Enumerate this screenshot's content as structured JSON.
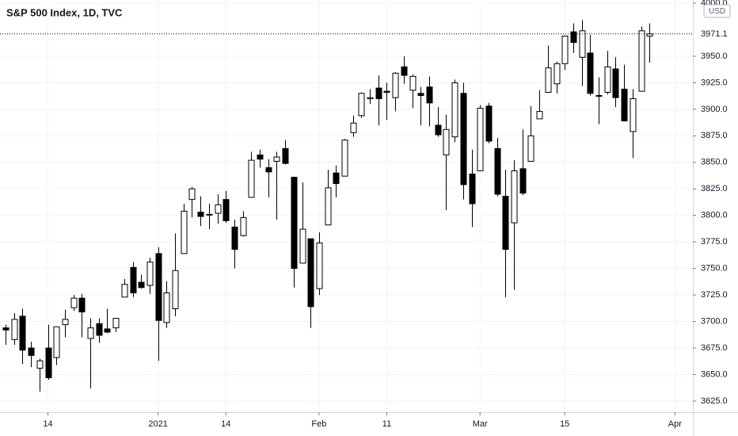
{
  "chart_data": {
    "type": "candlestick",
    "title": "S&P 500 Index, 1D, TVC",
    "currency": "USD",
    "dates": [
      "2020-12-07",
      "2020-12-08",
      "2020-12-09",
      "2020-12-10",
      "2020-12-11",
      "2020-12-14",
      "2020-12-15",
      "2020-12-16",
      "2020-12-17",
      "2020-12-18",
      "2020-12-21",
      "2020-12-22",
      "2020-12-23",
      "2020-12-24",
      "2020-12-28",
      "2020-12-29",
      "2020-12-30",
      "2020-12-31",
      "2021-01-04",
      "2021-01-05",
      "2021-01-06",
      "2021-01-07",
      "2021-01-08",
      "2021-01-11",
      "2021-01-12",
      "2021-01-13",
      "2021-01-14",
      "2021-01-15",
      "2021-01-19",
      "2021-01-20",
      "2021-01-21",
      "2021-01-22",
      "2021-01-25",
      "2021-01-26",
      "2021-01-27",
      "2021-01-28",
      "2021-01-29",
      "2021-02-01",
      "2021-02-02",
      "2021-02-03",
      "2021-02-04",
      "2021-02-05",
      "2021-02-08",
      "2021-02-09",
      "2021-02-10",
      "2021-02-11",
      "2021-02-12",
      "2021-02-16",
      "2021-02-17",
      "2021-02-18",
      "2021-02-19",
      "2021-02-22",
      "2021-02-23",
      "2021-02-24",
      "2021-02-25",
      "2021-02-26",
      "2021-03-01",
      "2021-03-02",
      "2021-03-03",
      "2021-03-04",
      "2021-03-05",
      "2021-03-08",
      "2021-03-09",
      "2021-03-10",
      "2021-03-11",
      "2021-03-12",
      "2021-03-15",
      "2021-03-16",
      "2021-03-17",
      "2021-03-18",
      "2021-03-19",
      "2021-03-22",
      "2021-03-23",
      "2021-03-24",
      "2021-03-25",
      "2021-03-26",
      "2021-03-29"
    ],
    "open": [
      3694,
      3683,
      3705,
      3675,
      3656,
      3675,
      3666,
      3697,
      3713,
      3722,
      3684,
      3698,
      3693,
      3694,
      3723,
      3751,
      3737,
      3734,
      3764,
      3699,
      3712,
      3764,
      3815,
      3803,
      3801,
      3802,
      3815,
      3789,
      3781,
      3817,
      3857,
      3845,
      3851,
      3863,
      3836,
      3755,
      3778,
      3731,
      3791,
      3840,
      3837,
      3878,
      3894,
      3910,
      3920,
      3917,
      3911,
      3940,
      3918,
      3915,
      3921,
      3885,
      3857,
      3874,
      3915,
      3839,
      3842,
      3903,
      3863,
      3818,
      3793,
      3844,
      3851,
      3891,
      3916,
      3924,
      3943,
      3973,
      3949,
      3953,
      3913,
      3916,
      3938,
      3919,
      3879,
      3917,
      3969
    ],
    "high": [
      3697,
      3708,
      3712,
      3681,
      3665,
      3697,
      3695,
      3711,
      3725,
      3726,
      3703,
      3703,
      3712,
      3703,
      3740,
      3756,
      3744,
      3760,
      3770,
      3738,
      3783,
      3811,
      3827,
      3818,
      3811,
      3820,
      3823,
      3796,
      3804,
      3860,
      3862,
      3853,
      3860,
      3871,
      3836,
      3831,
      3778,
      3784,
      3843,
      3847,
      3872,
      3894,
      3916,
      3919,
      3932,
      3925,
      3935,
      3950,
      3933,
      3921,
      3931,
      3902,
      3895,
      3928,
      3925,
      3862,
      3904,
      3906,
      3873,
      3843,
      3852,
      3881,
      3903,
      3918,
      3960,
      3945,
      3969,
      3981,
      3984,
      3970,
      3930,
      3955,
      3949,
      3942,
      3919,
      3978,
      3981
    ],
    "low": [
      3678,
      3678,
      3660,
      3657,
      3634,
      3645,
      3659,
      3685,
      3710,
      3685,
      3637,
      3680,
      3689,
      3690,
      3723,
      3723,
      3731,
      3726,
      3663,
      3694,
      3705,
      3764,
      3798,
      3790,
      3787,
      3792,
      3793,
      3750,
      3780,
      3817,
      3845,
      3817,
      3796,
      3848,
      3732,
      3755,
      3694,
      3725,
      3791,
      3817,
      3837,
      3874,
      3892,
      3905,
      3885,
      3890,
      3898,
      3924,
      3901,
      3885,
      3884,
      3874,
      3805,
      3869,
      3815,
      3789,
      3842,
      3868,
      3818,
      3723,
      3730,
      3819,
      3851,
      3891,
      3916,
      3915,
      3937,
      3953,
      3922,
      3913,
      3886,
      3914,
      3902,
      3889,
      3854,
      3917,
      3944
    ],
    "close": [
      3692,
      3702,
      3673,
      3668,
      3663,
      3647,
      3695,
      3702,
      3722,
      3709,
      3694,
      3687,
      3690,
      3703,
      3735,
      3727,
      3732,
      3756,
      3701,
      3727,
      3748,
      3804,
      3825,
      3799,
      3801,
      3810,
      3795,
      3768,
      3798,
      3852,
      3853,
      3841,
      3855,
      3849,
      3750,
      3787,
      3714,
      3774,
      3826,
      3830,
      3871,
      3887,
      3915,
      3911,
      3910,
      3916,
      3934,
      3932,
      3931,
      3913,
      3906,
      3876,
      3881,
      3925,
      3829,
      3811,
      3901,
      3870,
      3820,
      3768,
      3842,
      3821,
      3875,
      3898,
      3939,
      3943,
      3969,
      3963,
      3974,
      3915,
      3913,
      3940,
      3911,
      3889,
      3910,
      3974,
      3971
    ],
    "up_color": "#ffffff",
    "down_color": "#000000",
    "border_color": "#000000",
    "last_price": 3971.1,
    "ylim": [
      3614.5,
      4003
    ],
    "yticks": [
      {
        "value": 3625,
        "label": "3625.0"
      },
      {
        "value": 3650,
        "label": "3650.0"
      },
      {
        "value": 3675,
        "label": "3675.0"
      },
      {
        "value": 3700,
        "label": "3700.0"
      },
      {
        "value": 3725,
        "label": "3725.0"
      },
      {
        "value": 3750,
        "label": "3750.0"
      },
      {
        "value": 3775,
        "label": "3775.0"
      },
      {
        "value": 3800,
        "label": "3800.0"
      },
      {
        "value": 3825,
        "label": "3825.0"
      },
      {
        "value": 3850,
        "label": "3850.0"
      },
      {
        "value": 3875,
        "label": "3875.0"
      },
      {
        "value": 3900,
        "label": "3900.0"
      },
      {
        "value": 3925,
        "label": "3925.0"
      },
      {
        "value": 3950,
        "label": "3950.0"
      },
      {
        "value": 4000,
        "label": "4000.0"
      }
    ],
    "xticks": [
      {
        "value": "2020-12-14",
        "label": "14"
      },
      {
        "value": "2021-01-04",
        "label": "2021"
      },
      {
        "value": "2021-01-14",
        "label": "14"
      },
      {
        "value": "2021-02-01",
        "label": "Feb"
      },
      {
        "value": "2021-02-11",
        "label": "11"
      },
      {
        "value": "2021-03-01",
        "label": "Mar"
      },
      {
        "value": "2021-03-15",
        "label": "15"
      },
      {
        "value": "2021-04-01",
        "label": "Apr"
      }
    ],
    "grid": true
  }
}
